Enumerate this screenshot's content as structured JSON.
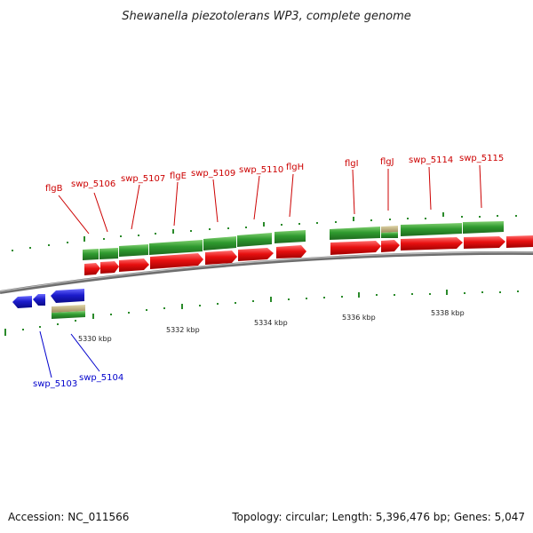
{
  "title": "Shewanella piezotolerans WP3, complete genome",
  "footer": {
    "accession": "Accession: NC_011566",
    "summary": "Topology: circular; Length: 5,396,476 bp; Genes: 5,047"
  },
  "colors": {
    "red": "#e01010",
    "green": "#2f8f2f",
    "blue": "#1c1ccc",
    "tan": "#b8a878",
    "backbone": "#8a8a8a",
    "tick": "#2a8a2a",
    "label_top": "#cc0000",
    "label_bottom": "#0000cc"
  },
  "axis": {
    "unit_labels": [
      "5330 kbp",
      "5332 kbp",
      "5334 kbp",
      "5336 kbp",
      "5338 kbp"
    ]
  },
  "genes_top": [
    {
      "name": "flgB"
    },
    {
      "name": "swp_5106"
    },
    {
      "name": "swp_5107"
    },
    {
      "name": "flgE"
    },
    {
      "name": "swp_5109"
    },
    {
      "name": "swp_5110"
    },
    {
      "name": "flgH"
    },
    {
      "name": "flgI"
    },
    {
      "name": "flgJ"
    },
    {
      "name": "swp_5114"
    },
    {
      "name": "swp_5115"
    }
  ],
  "genes_bottom": [
    {
      "name": "swp_5103"
    },
    {
      "name": "swp_5104"
    }
  ]
}
